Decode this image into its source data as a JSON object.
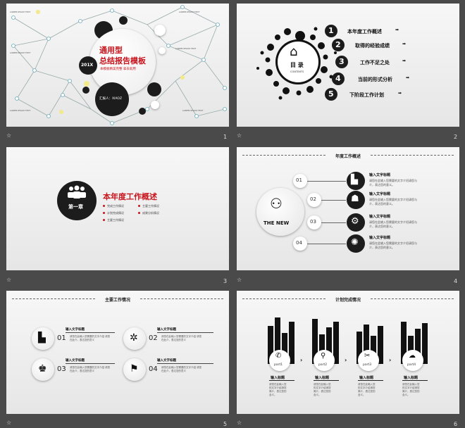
{
  "thumbs": [
    {
      "number": "1"
    },
    {
      "number": "2"
    },
    {
      "number": "3"
    },
    {
      "number": "4"
    },
    {
      "number": "5"
    },
    {
      "number": "6"
    }
  ],
  "star_icon": "☆",
  "slide1": {
    "title_line1": "通用型",
    "title_line2": "总结报告模板",
    "subtitle": "本模板精美完整  拿去就用",
    "year_badge": "201X",
    "reporter": "汇报人：XIAOZ",
    "node_text": "LOREM IPSUM TEXT"
  },
  "slide2": {
    "center_title": "目 录",
    "center_sub": "CONTENTS",
    "items": [
      {
        "num": "1",
        "label": "本年度工作概述"
      },
      {
        "num": "2",
        "label": "取得的经验成绩"
      },
      {
        "num": "3",
        "label": "工作不足之处"
      },
      {
        "num": "4",
        "label": "当前的形式分析"
      },
      {
        "num": "5",
        "label": "下阶段工作计划"
      }
    ]
  },
  "slide3": {
    "chapter": "第一章",
    "title": "本年度工作概述",
    "bullets": [
      "完成工作情况",
      "计划完成情况",
      "主要工作情况",
      "成果分析情况"
    ]
  },
  "slide4": {
    "section_title": "年度工作概述",
    "center_text": "THE NEW",
    "items": [
      {
        "num": "01",
        "title": "输入文字标题",
        "desc1": "请您在此输入您需要的文字介绍请您与",
        "desc2": "介，表达您的意义。"
      },
      {
        "num": "02",
        "title": "输入文字标题",
        "desc1": "请您在此输入您需要的文字介绍请您与",
        "desc2": "介，表达您的意义。"
      },
      {
        "num": "03",
        "title": "输入文字标题",
        "desc1": "请您在此输入您需要的文字介绍请您与",
        "desc2": "介，表达您的意义。"
      },
      {
        "num": "04",
        "title": "输入文字标题",
        "desc1": "请您在此输入您需要的文字介绍请您与",
        "desc2": "介，表达您的意义。"
      }
    ]
  },
  "slide5": {
    "section_title": "主要工作情况",
    "items": [
      {
        "num": "01",
        "title": "输入文字标题",
        "desc1": "请您在此输入您需要的文字介绍 请您",
        "desc2": "在此介，表达您的意义"
      },
      {
        "num": "02",
        "title": "输入文字标题",
        "desc1": "请您在此输入您需要的文字介绍 请您",
        "desc2": "在此介，表达您的意义"
      },
      {
        "num": "03",
        "title": "输入文字标题",
        "desc1": "请您在此输入您需要的文字介绍 请您",
        "desc2": "在此介，表达您的意义"
      },
      {
        "num": "04",
        "title": "输入文字标题",
        "desc1": "请您在此输入您需要的文字介绍 请您",
        "desc2": "在此介，表达您的意义"
      }
    ]
  },
  "slide6": {
    "section_title": "计划完成情况",
    "parts": [
      {
        "label": "part1",
        "title": "输入标题",
        "desc": [
          "请您在此输入您",
          "的文字介绍请您",
          "简介，表达您的",
          "含义。"
        ]
      },
      {
        "label": "part2",
        "title": "输入标题",
        "desc": [
          "请您在此输入您",
          "的文字介绍请您",
          "简介，表达您的",
          "含义。"
        ]
      },
      {
        "label": "part3",
        "title": "输入标题",
        "desc": [
          "请您在此输入您",
          "的文字介绍请您",
          "简介，表达您的",
          "含义。"
        ]
      },
      {
        "label": "part4",
        "title": "输入标题",
        "desc": [
          "请您在此输入您",
          "的文字介绍请您",
          "简介，表达您的",
          "含义。"
        ]
      }
    ]
  }
}
